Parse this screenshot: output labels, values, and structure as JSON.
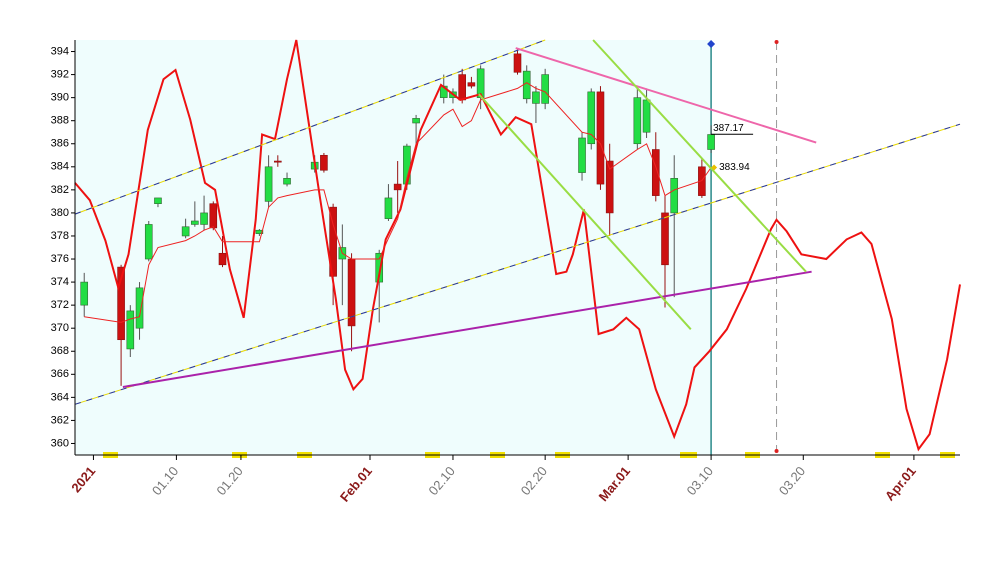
{
  "chart_data": {
    "type": "candlestick",
    "xlim": [
      0,
      96
    ],
    "ylim": [
      359,
      395
    ],
    "yticks": [
      360,
      362,
      364,
      366,
      368,
      370,
      372,
      374,
      376,
      378,
      380,
      382,
      384,
      386,
      388,
      390,
      392,
      394
    ],
    "xticks": [
      {
        "value": 2,
        "label": "2021",
        "color": "#8b1a1a"
      },
      {
        "value": 11,
        "label": "01.10",
        "color": "#777777"
      },
      {
        "value": 18,
        "label": "01.20",
        "color": "#777777"
      },
      {
        "value": 32,
        "label": "Feb.01",
        "color": "#8b1a1a"
      },
      {
        "value": 41,
        "label": "02.10",
        "color": "#777777"
      },
      {
        "value": 51,
        "label": "02.20",
        "color": "#777777"
      },
      {
        "value": 60,
        "label": "Mar.01",
        "color": "#8b1a1a"
      },
      {
        "value": 69,
        "label": "03.10",
        "color": "#777777"
      },
      {
        "value": 79,
        "label": "03.20",
        "color": "#777777"
      },
      {
        "value": 91,
        "label": "Apr.01",
        "color": "#8b1a1a"
      }
    ],
    "background": "#effdfd",
    "cursor_x": 69,
    "cursor_color": "#2a8a8a",
    "projection_x": 76.1,
    "up_color": "#22dd44",
    "down_color": "#cc1111",
    "candles": {
      "x": [
        1,
        5,
        6,
        7,
        8,
        9,
        12,
        13,
        14,
        15,
        16,
        20,
        21,
        22,
        23,
        26,
        27,
        28,
        29,
        30,
        33,
        34,
        35,
        36,
        37,
        40,
        41,
        42,
        43,
        44,
        48,
        49,
        50,
        51,
        55,
        56,
        57,
        58,
        61,
        62,
        63,
        64,
        65,
        68,
        69
      ],
      "open": [
        372,
        375.3,
        368.2,
        370,
        376,
        380.8,
        378,
        379,
        379,
        380.8,
        376.5,
        378.2,
        381,
        384.5,
        382.5,
        383.8,
        385,
        380.5,
        376,
        376,
        374,
        379.5,
        382.5,
        382.5,
        387.8,
        390,
        390,
        392,
        391.3,
        390,
        393.8,
        389.9,
        389.5,
        389.5,
        383.5,
        386,
        390.5,
        384.5,
        386,
        387,
        385.5,
        380,
        380,
        384,
        385.5
      ],
      "high": [
        374.8,
        375.5,
        372,
        374,
        379.3,
        381.3,
        379.5,
        381,
        381.5,
        381,
        378,
        378.6,
        385,
        385,
        383.5,
        385,
        385.2,
        380.8,
        379,
        376.5,
        376.8,
        382.5,
        384.5,
        386,
        388.5,
        392,
        390.8,
        392.5,
        391.8,
        392.8,
        394.3,
        392.8,
        391,
        392.5,
        387,
        390.8,
        391,
        386,
        391,
        390.8,
        387,
        381.5,
        385,
        384.8,
        387.6
      ],
      "low": [
        371,
        365,
        367.5,
        369,
        375.8,
        380.5,
        377.8,
        378.8,
        378.5,
        378.5,
        375.3,
        378,
        380.5,
        384,
        382.3,
        383.5,
        383.5,
        372,
        372,
        368,
        370.5,
        379.3,
        380,
        382,
        386,
        389.5,
        389.5,
        389.5,
        390.8,
        389,
        392,
        389.5,
        387.8,
        389,
        382.8,
        385.5,
        382,
        378,
        385.5,
        386.5,
        381,
        371.8,
        372.7,
        381.3,
        385.2
      ],
      "close": [
        374,
        369,
        371.5,
        373.5,
        379,
        381.3,
        378.8,
        379.3,
        380,
        378.7,
        375.5,
        378.5,
        384,
        384.4,
        383,
        384.4,
        383.7,
        374.5,
        377,
        370.2,
        376.5,
        381.3,
        382,
        385.8,
        388.2,
        391,
        390.5,
        389.8,
        391,
        392.5,
        392.2,
        392.3,
        390.5,
        392,
        386.5,
        390.5,
        382.5,
        380,
        390,
        389.8,
        381.5,
        375.5,
        383,
        381.5,
        386.8
      ]
    },
    "lines": [
      {
        "color": "#ee1111",
        "width": 2,
        "x": [
          0,
          1.6,
          3.3,
          4.7,
          5.8,
          7.9,
          9.6,
          10.9,
          12.5,
          14.1,
          15.2,
          16.8,
          18.3,
          19.6,
          20.3,
          21.7,
          23,
          24,
          25.3,
          26.6,
          28.3,
          29.3,
          30.2,
          31.2,
          32.3,
          33.7,
          35.3,
          37.5,
          39.7,
          41.8,
          44,
          46.2,
          47.8,
          49.5,
          51.4,
          52.2,
          53.3,
          54,
          55.2,
          56.8,
          58.4,
          59.8,
          61.2,
          63,
          65,
          66.3,
          67.2,
          68.8,
          70.7,
          72.8,
          75.5,
          76.1,
          77.2,
          78.8,
          81.5,
          83.7,
          85.3,
          86.4,
          88.6,
          90.2,
          91.5,
          92.7,
          94.6,
          96
        ],
        "values": [
          382.6,
          381.1,
          377.6,
          373.5,
          376.4,
          387.2,
          391.6,
          392.4,
          388.1,
          382.6,
          382,
          375.1,
          370.9,
          379.4,
          386.8,
          386.4,
          391.6,
          395,
          388.1,
          381.2,
          372.5,
          366.4,
          364.7,
          365.6,
          371.6,
          377.7,
          380.3,
          387.2,
          391.1,
          389.8,
          390.3,
          386.8,
          388.3,
          387.7,
          378.6,
          374.7,
          374.9,
          376.4,
          380.3,
          369.5,
          369.9,
          370.9,
          369.9,
          364.7,
          360.6,
          363.4,
          366.6,
          368,
          369.9,
          373.4,
          378.6,
          379.4,
          378.4,
          376.4,
          376,
          377.7,
          378.3,
          377.3,
          370.8,
          363,
          359.5,
          360.8,
          367.3,
          373.8
        ]
      },
      {
        "color": "#ee2222",
        "width": 1,
        "x": [
          1,
          5,
          6,
          7,
          8,
          9,
          12,
          13,
          14,
          15,
          16,
          20,
          21,
          22,
          23,
          26,
          27,
          28,
          29,
          30,
          33,
          34,
          35,
          36,
          37,
          40,
          41,
          42,
          43,
          44,
          48,
          49,
          50,
          51,
          55,
          56,
          57,
          58,
          61,
          62,
          63,
          64,
          65,
          68,
          69
        ],
        "values": [
          371,
          370.5,
          370.8,
          371,
          375.5,
          377,
          377.6,
          378,
          378.5,
          378.8,
          377.5,
          377.5,
          380.5,
          381.3,
          381.5,
          382,
          382,
          379,
          376.5,
          376,
          376,
          377.8,
          379.5,
          383,
          386,
          388.5,
          389,
          387.5,
          388,
          389.8,
          390.8,
          391.3,
          390.8,
          390.5,
          387,
          386.8,
          386,
          383.8,
          385.5,
          386,
          384,
          381.5,
          382,
          382.8,
          383.94
        ]
      },
      {
        "color": "#2233aa",
        "width": 1,
        "dash": "#e8d800",
        "x": [
          0,
          51
        ],
        "values": [
          379.9,
          395
        ]
      },
      {
        "color": "#2233aa",
        "width": 1,
        "dash": "#e8d800",
        "x": [
          0,
          96
        ],
        "values": [
          363.4,
          387.7
        ]
      },
      {
        "color": "#ee66aa",
        "width": 2,
        "x": [
          47.8,
          80.4
        ],
        "values": [
          394.3,
          386.1
        ]
      },
      {
        "color": "#aa22aa",
        "width": 2,
        "x": [
          5.2,
          79.9
        ],
        "values": [
          364.9,
          374.9
        ]
      },
      {
        "color": "#99dd44",
        "width": 2,
        "x": [
          43.8,
          66.8
        ],
        "values": [
          390.3,
          369.9
        ]
      },
      {
        "color": "#99dd44",
        "width": 2,
        "x": [
          56.2,
          79.3
        ],
        "values": [
          395,
          374.9
        ]
      }
    ],
    "price_labels": [
      387.17,
      383.94
    ]
  }
}
